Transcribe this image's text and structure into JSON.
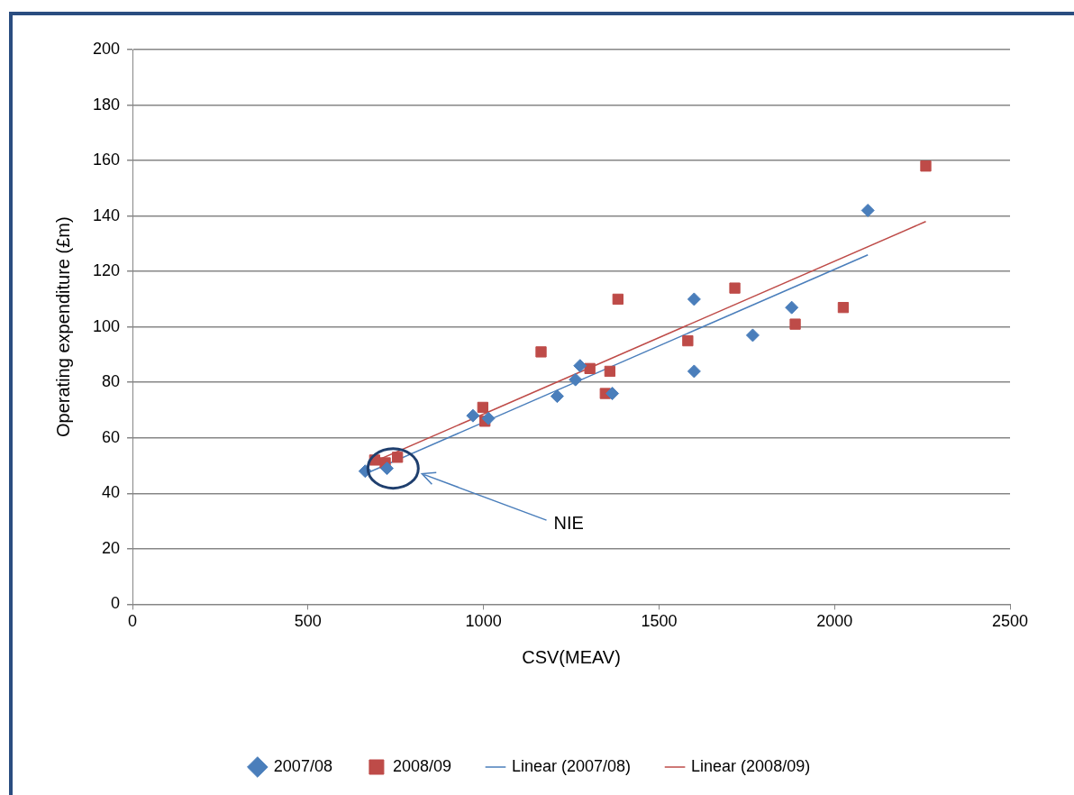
{
  "chart_data": {
    "type": "scatter",
    "xlabel": "CSV(MEAV)",
    "ylabel": "Operating expenditure (£m)",
    "xlim": [
      0,
      2500
    ],
    "xticks": [
      0,
      500,
      1000,
      1500,
      2000,
      2500
    ],
    "ylim": [
      0,
      200
    ],
    "yticks": [
      0,
      20,
      40,
      60,
      80,
      100,
      120,
      140,
      160,
      180,
      200
    ],
    "grid": "y",
    "legend": "bottom",
    "annotations": [
      "NIE"
    ],
    "series": [
      {
        "name": "2007/08",
        "type": "scatter",
        "marker": "diamond",
        "color": "#4a7ebb",
        "x": [
          663,
          725,
          970,
          1014,
          1210,
          1262,
          1275,
          1367,
          1600,
          1600,
          1767,
          1878,
          2095
        ],
        "values": [
          48,
          49,
          68,
          67,
          75,
          81,
          86,
          76,
          110,
          84,
          97,
          107,
          142
        ]
      },
      {
        "name": "2008/09",
        "type": "scatter",
        "marker": "square",
        "color": "#be4b48",
        "x": [
          690,
          720,
          755,
          998,
          1004,
          1164,
          1303,
          1360,
          1347,
          1383,
          1582,
          1716,
          1888,
          2025,
          2260
        ],
        "values": [
          52,
          51,
          53,
          71,
          66,
          91,
          85,
          84,
          76,
          110,
          95,
          114,
          101,
          107,
          158
        ]
      },
      {
        "name": "Linear (2007/08)",
        "type": "line",
        "marker": "none",
        "color": "#4a7ebb",
        "x": [
          663,
          2095
        ],
        "values": [
          47,
          126
        ]
      },
      {
        "name": "Linear (2008/09)",
        "type": "line",
        "marker": "none",
        "color": "#be4b48",
        "x": [
          690,
          2260
        ],
        "values": [
          51.5,
          138
        ]
      }
    ]
  }
}
